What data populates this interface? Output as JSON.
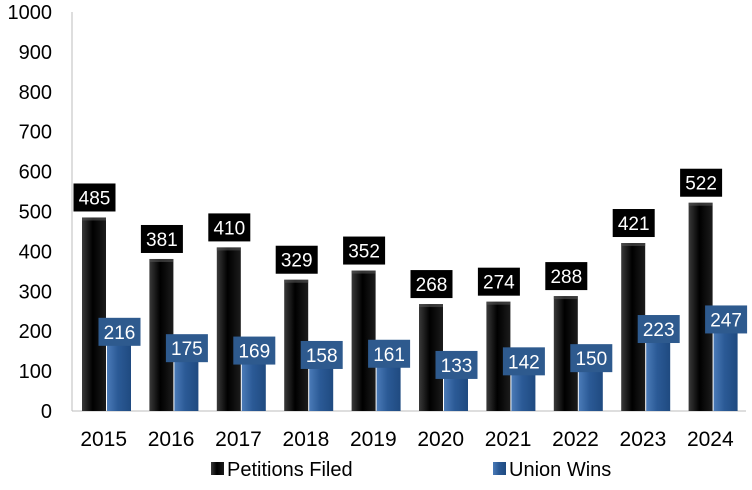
{
  "chart_data": {
    "type": "bar",
    "categories": [
      "2015",
      "2016",
      "2017",
      "2018",
      "2019",
      "2020",
      "2021",
      "2022",
      "2023",
      "2024"
    ],
    "series": [
      {
        "name": "Petitions Filed",
        "color": "#111111",
        "values": [
          485,
          381,
          410,
          329,
          352,
          268,
          274,
          288,
          421,
          522
        ]
      },
      {
        "name": "Union Wins",
        "color": "#2f5f9a",
        "values": [
          216,
          175,
          169,
          158,
          161,
          133,
          142,
          150,
          223,
          247
        ]
      }
    ],
    "ylim": [
      0,
      1000
    ],
    "yticks": [
      0,
      100,
      200,
      300,
      400,
      500,
      600,
      700,
      800,
      900,
      1000
    ],
    "grid": false,
    "legend_position": "bottom",
    "label_colors": {
      "Petitions Filed": "#000000",
      "Union Wins": "#2e5a8e"
    }
  }
}
